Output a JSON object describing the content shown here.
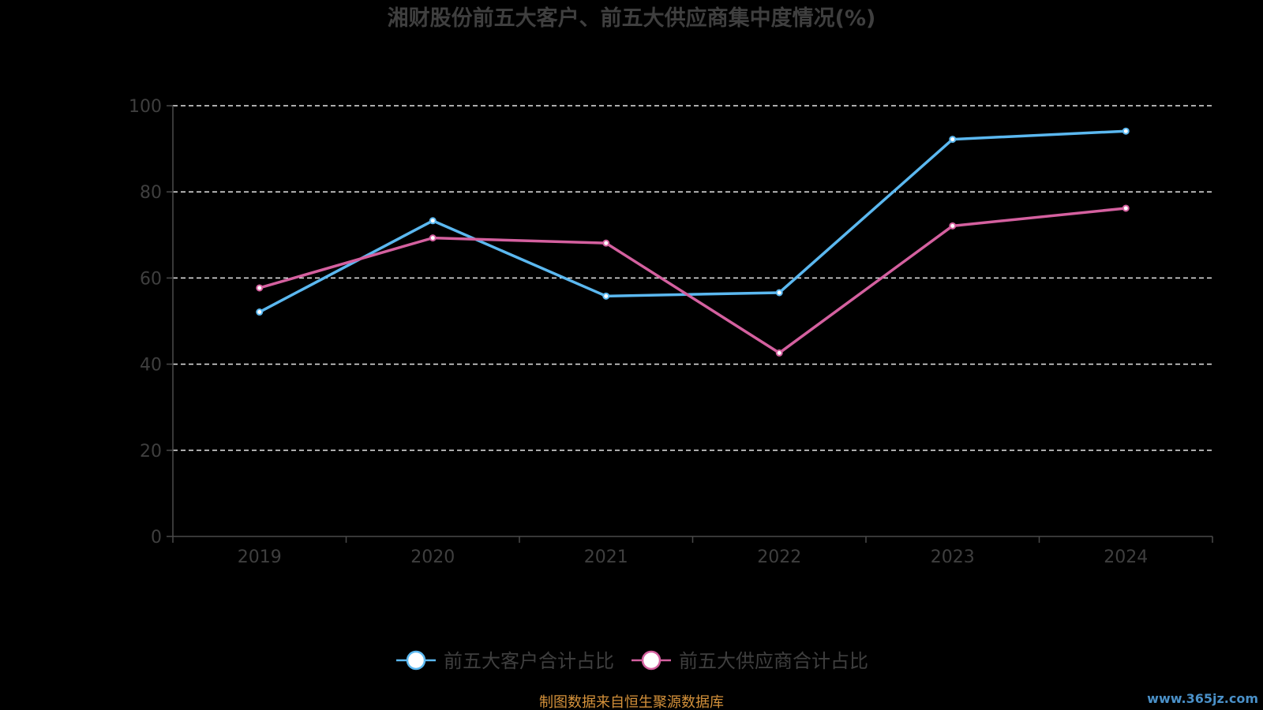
{
  "chart_data": {
    "type": "line",
    "title": "湘财股份前五大客户、前五大供应商集中度情况(%)",
    "xlabel": "",
    "ylabel": "",
    "categories": [
      "2019",
      "2020",
      "2021",
      "2022",
      "2023",
      "2024"
    ],
    "ylim": [
      0,
      100
    ],
    "yticks": [
      0,
      20,
      40,
      60,
      80,
      100
    ],
    "grid": true,
    "legend_position": "bottom",
    "series": [
      {
        "name": "前五大客户合计占比",
        "color": "#5bb8f0",
        "values": [
          52.1,
          73.3,
          55.8,
          56.6,
          92.2,
          94.1
        ]
      },
      {
        "name": "前五大供应商合计占比",
        "color": "#d4609f",
        "values": [
          57.7,
          69.3,
          68.1,
          42.6,
          72.1,
          76.2
        ]
      }
    ]
  },
  "footer": {
    "source": "制图数据来自恒生聚源数据库",
    "watermark": "www.365jz.com"
  }
}
